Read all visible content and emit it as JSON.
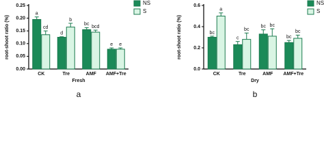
{
  "chart_data": [
    {
      "type": "bar",
      "panel_label": "a",
      "x_label": "Fresh",
      "y_label": "root-shoot ratio (%)",
      "categories": [
        "CK",
        "Tre",
        "AMF",
        "AMF+Tre"
      ],
      "series": [
        {
          "name": "NS",
          "color": "#1b8a58",
          "values": [
            0.195,
            0.125,
            0.155,
            0.078
          ],
          "errors": [
            0.01,
            0.002,
            0.008,
            0.005
          ],
          "letters": [
            "a",
            "d",
            "bc",
            "e"
          ]
        },
        {
          "name": "S",
          "color": "#d9f5e4",
          "values": [
            0.135,
            0.165,
            0.145,
            0.078
          ],
          "errors": [
            0.015,
            0.015,
            0.008,
            0.005
          ],
          "letters": [
            "cd",
            "b",
            "bcd",
            "e"
          ]
        }
      ],
      "ylim": [
        0,
        0.25
      ],
      "yticks": [
        {
          "value": 0,
          "label": "0.00"
        },
        {
          "value": 0.05,
          "label": "0.05"
        },
        {
          "value": 0.1,
          "label": "0.10"
        },
        {
          "value": 0.15,
          "label": "0.15"
        },
        {
          "value": 0.2,
          "label": "0.20"
        },
        {
          "value": 0.25,
          "label": "0.25"
        }
      ]
    },
    {
      "type": "bar",
      "panel_label": "b",
      "x_label": "Dry",
      "y_label": "root-shoot ratio (%)",
      "categories": [
        "CK",
        "Tre",
        "AMF",
        "AMF+Tre"
      ],
      "series": [
        {
          "name": "NS",
          "color": "#1b8a58",
          "values": [
            0.3,
            0.23,
            0.33,
            0.25
          ],
          "errors": [
            0.01,
            0.03,
            0.04,
            0.02
          ],
          "letters": [
            "bc",
            "c",
            "bc",
            "bc"
          ]
        },
        {
          "name": "S",
          "color": "#d9f5e4",
          "values": [
            0.5,
            0.28,
            0.31,
            0.29
          ],
          "errors": [
            0.03,
            0.06,
            0.07,
            0.03
          ],
          "letters": [
            "a",
            "bc",
            "bc",
            "bc"
          ]
        }
      ],
      "ylim": [
        0,
        0.6
      ],
      "yticks": [
        {
          "value": 0,
          "label": "0.0"
        },
        {
          "value": 0.2,
          "label": "0.2"
        },
        {
          "value": 0.4,
          "label": "0.4"
        },
        {
          "value": 0.6,
          "label": "0.6"
        }
      ]
    }
  ]
}
